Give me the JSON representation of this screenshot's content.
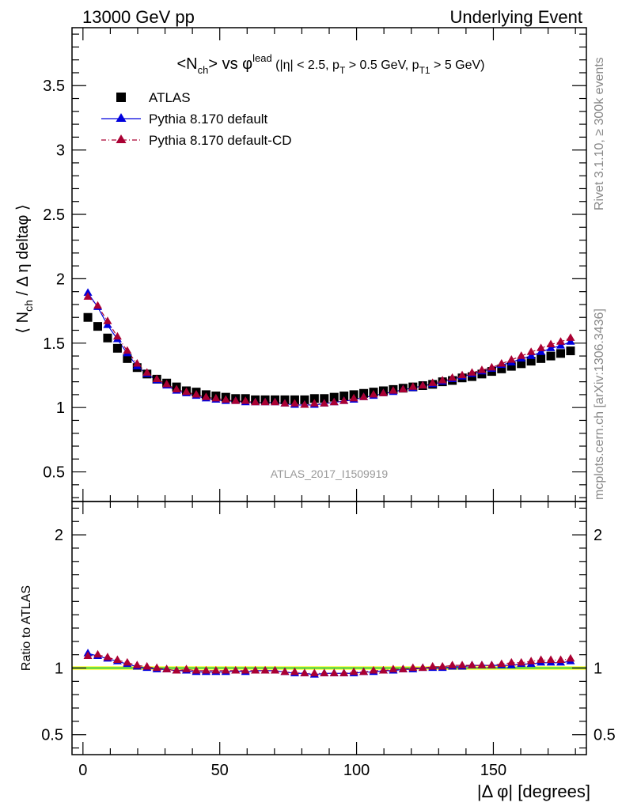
{
  "header": {
    "left": "13000 GeV pp",
    "right": "Underlying Event"
  },
  "side_labels": {
    "rivet": "Rivet 3.1.10, ≥ 300k events",
    "mcplots": "mcplots.cern.ch [arXiv:1306.3436]"
  },
  "watermark": "ATLAS_2017_I1509919",
  "colors": {
    "atlas": "#000000",
    "pythia_default": "#0000dd",
    "pythia_cd": "#aa0033",
    "band_yellow": "#ffff66",
    "band_green": "#33cc33"
  },
  "chart_data": [
    {
      "type": "scatter",
      "panel": "main",
      "title_parts": {
        "a": "<N",
        "a_sub": "ch",
        "b": "> vs φ",
        "b_sup": "lead",
        "c": " (|η| < 2.5, p",
        "c_sub": "T",
        "d": " > 0.5 GeV, p",
        "d_sub": "T1",
        "e": " > 5 GeV)"
      },
      "ylabel_parts": {
        "a": "⟨ N",
        "a_sub": "ch",
        "b": " / Δ η deltaφ ⟩"
      },
      "ylim": [
        0.27,
        3.95
      ],
      "yticks": [
        0.5,
        1,
        1.5,
        2,
        2.5,
        3,
        3.5
      ],
      "ytick_labels": [
        "0.5",
        "1",
        "1.5",
        "2",
        "2.5",
        "3",
        "3.5"
      ],
      "legend_position": "top-left",
      "x": [
        1.8,
        5.4,
        9.0,
        12.6,
        16.2,
        19.8,
        23.4,
        27.0,
        30.6,
        34.2,
        37.8,
        41.4,
        45.0,
        48.6,
        52.2,
        55.8,
        59.4,
        63.0,
        66.6,
        70.2,
        73.8,
        77.4,
        81.0,
        84.6,
        88.2,
        91.8,
        95.4,
        99.0,
        102.6,
        106.2,
        109.8,
        113.4,
        117.0,
        120.6,
        124.2,
        127.8,
        131.4,
        135.0,
        138.6,
        142.2,
        145.8,
        149.4,
        153.0,
        156.6,
        160.2,
        163.8,
        167.4,
        171.0,
        174.6,
        178.2
      ],
      "series": [
        {
          "name": "ATLAS",
          "marker": "square",
          "values": [
            1.7,
            1.63,
            1.54,
            1.46,
            1.38,
            1.31,
            1.26,
            1.22,
            1.19,
            1.16,
            1.13,
            1.12,
            1.1,
            1.09,
            1.08,
            1.07,
            1.07,
            1.06,
            1.06,
            1.06,
            1.06,
            1.06,
            1.06,
            1.07,
            1.07,
            1.08,
            1.09,
            1.1,
            1.11,
            1.12,
            1.13,
            1.14,
            1.15,
            1.16,
            1.17,
            1.18,
            1.2,
            1.21,
            1.23,
            1.24,
            1.26,
            1.28,
            1.3,
            1.32,
            1.34,
            1.36,
            1.38,
            1.4,
            1.42,
            1.44
          ]
        },
        {
          "name": "Pythia 8.170 default",
          "marker": "triangle",
          "values": [
            1.89,
            1.78,
            1.64,
            1.53,
            1.42,
            1.32,
            1.26,
            1.21,
            1.17,
            1.13,
            1.11,
            1.09,
            1.07,
            1.06,
            1.05,
            1.05,
            1.04,
            1.04,
            1.04,
            1.04,
            1.03,
            1.02,
            1.02,
            1.02,
            1.03,
            1.04,
            1.05,
            1.06,
            1.08,
            1.09,
            1.11,
            1.12,
            1.14,
            1.15,
            1.17,
            1.18,
            1.2,
            1.22,
            1.24,
            1.26,
            1.28,
            1.3,
            1.33,
            1.35,
            1.38,
            1.4,
            1.43,
            1.46,
            1.48,
            1.51
          ]
        },
        {
          "name": "Pythia 8.170 default-CD",
          "marker": "triangle",
          "values": [
            1.86,
            1.79,
            1.67,
            1.55,
            1.44,
            1.34,
            1.27,
            1.22,
            1.18,
            1.14,
            1.12,
            1.1,
            1.08,
            1.07,
            1.06,
            1.05,
            1.05,
            1.04,
            1.04,
            1.04,
            1.03,
            1.03,
            1.02,
            1.03,
            1.03,
            1.04,
            1.05,
            1.07,
            1.08,
            1.1,
            1.11,
            1.13,
            1.14,
            1.16,
            1.17,
            1.19,
            1.21,
            1.23,
            1.25,
            1.27,
            1.29,
            1.31,
            1.34,
            1.37,
            1.4,
            1.43,
            1.46,
            1.49,
            1.51,
            1.54
          ]
        }
      ]
    },
    {
      "type": "scatter",
      "panel": "ratio",
      "ylabel": "Ratio to ATLAS",
      "ylim": [
        0.35,
        2.25
      ],
      "yticks": [
        0.5,
        1,
        2
      ],
      "ytick_labels": [
        "0.5",
        "1",
        "2"
      ],
      "xlabel": "|Δ φ| [degrees]",
      "xlim": [
        -4,
        184
      ],
      "xticks": [
        0,
        50,
        100,
        150
      ],
      "xtick_labels": [
        "0",
        "50",
        "100",
        "150"
      ],
      "reference": 1.0,
      "band": [
        0.985,
        1.015
      ],
      "series": [
        {
          "name": "Pythia 8.170 default",
          "values": [
            1.11,
            1.09,
            1.07,
            1.05,
            1.03,
            1.01,
            1.0,
            0.99,
            0.99,
            0.98,
            0.98,
            0.97,
            0.97,
            0.97,
            0.97,
            0.98,
            0.97,
            0.98,
            0.98,
            0.98,
            0.97,
            0.96,
            0.96,
            0.95,
            0.96,
            0.96,
            0.96,
            0.96,
            0.97,
            0.97,
            0.98,
            0.98,
            0.99,
            0.99,
            1.0,
            1.0,
            1.0,
            1.01,
            1.01,
            1.02,
            1.02,
            1.02,
            1.02,
            1.02,
            1.03,
            1.03,
            1.04,
            1.04,
            1.04,
            1.05
          ]
        },
        {
          "name": "Pythia 8.170 default-CD",
          "values": [
            1.09,
            1.1,
            1.08,
            1.06,
            1.04,
            1.02,
            1.01,
            1.0,
            0.99,
            0.98,
            0.99,
            0.98,
            0.98,
            0.98,
            0.98,
            0.98,
            0.98,
            0.98,
            0.98,
            0.98,
            0.97,
            0.97,
            0.96,
            0.96,
            0.96,
            0.96,
            0.96,
            0.97,
            0.97,
            0.98,
            0.98,
            0.99,
            0.99,
            1.0,
            1.0,
            1.01,
            1.01,
            1.02,
            1.02,
            1.02,
            1.02,
            1.02,
            1.03,
            1.04,
            1.04,
            1.05,
            1.06,
            1.06,
            1.06,
            1.07
          ]
        }
      ]
    }
  ]
}
